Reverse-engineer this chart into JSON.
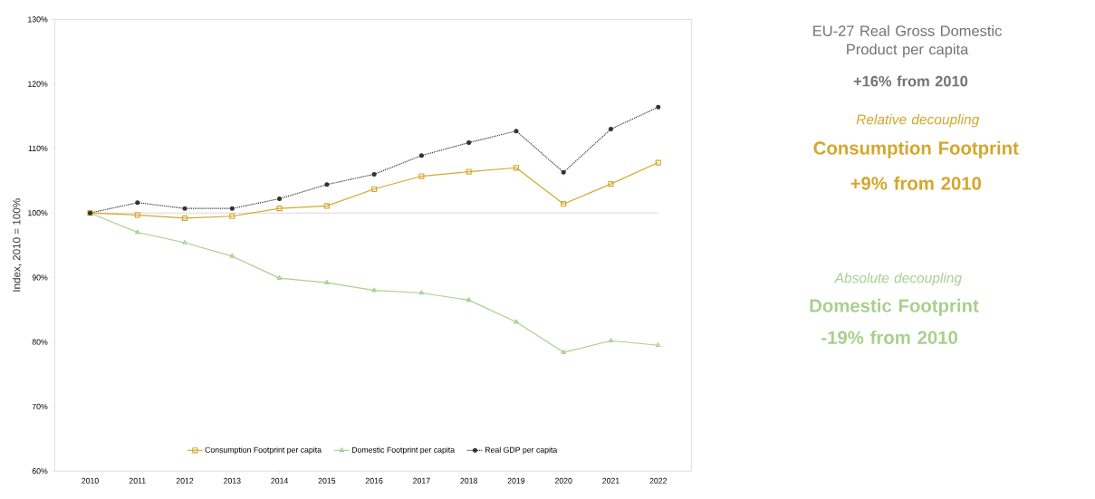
{
  "chart_data": {
    "type": "line",
    "ylabel": "Index, 2010 = 100%",
    "x": [
      2010,
      2011,
      2012,
      2013,
      2014,
      2015,
      2016,
      2017,
      2018,
      2019,
      2020,
      2021,
      2022
    ],
    "xlim": [
      2009.25,
      2022.7
    ],
    "xticks": [
      2010,
      2011,
      2012,
      2013,
      2014,
      2015,
      2016,
      2017,
      2018,
      2019,
      2020,
      2021,
      2022
    ],
    "ylim": [
      60,
      130
    ],
    "yticks": [
      {
        "value": 60,
        "label": "60%"
      },
      {
        "value": 70,
        "label": "70%"
      },
      {
        "value": 80,
        "label": "80%"
      },
      {
        "value": 90,
        "label": "90%"
      },
      {
        "value": 100,
        "label": "100%"
      },
      {
        "value": 110,
        "label": "110%"
      },
      {
        "value": 120,
        "label": "120%"
      },
      {
        "value": 130,
        "label": "130%"
      }
    ],
    "series": [
      {
        "name": "Consumption Footprint per capita",
        "color": "#d4a72c",
        "marker": "square",
        "line_style": "solid",
        "values": [
          100,
          99.7,
          99.2,
          99.5,
          100.7,
          101.1,
          103.7,
          105.7,
          106.4,
          107.0,
          101.4,
          104.5,
          107.8
        ]
      },
      {
        "name": "Domestic Footprint per capita",
        "color": "#a8d08d",
        "marker": "triangle",
        "line_style": "solid",
        "values": [
          100,
          97.0,
          95.4,
          93.3,
          89.9,
          89.2,
          88.0,
          87.6,
          86.5,
          83.1,
          78.4,
          80.2,
          79.5
        ]
      },
      {
        "name": "Real GDP per capita",
        "color": "#333333",
        "marker": "circle",
        "line_style": "dotted",
        "values": [
          100,
          101.6,
          100.7,
          100.7,
          102.2,
          104.4,
          106.0,
          108.9,
          110.9,
          112.7,
          106.3,
          113.0,
          116.4
        ]
      }
    ],
    "ref_lines": [
      {
        "axis": "y",
        "value": 100,
        "color": "#999999"
      }
    ],
    "legend": "bottom",
    "grid": false,
    "annotations": [
      "EU-27 Real Gross Domestic Product per capita",
      "+16% from 2010",
      "Relative decoupling",
      "Consumption Footprint",
      "+9% from 2010",
      "Absolute decoupling",
      "Domestic Footprint",
      "-19% from 2010"
    ]
  }
}
